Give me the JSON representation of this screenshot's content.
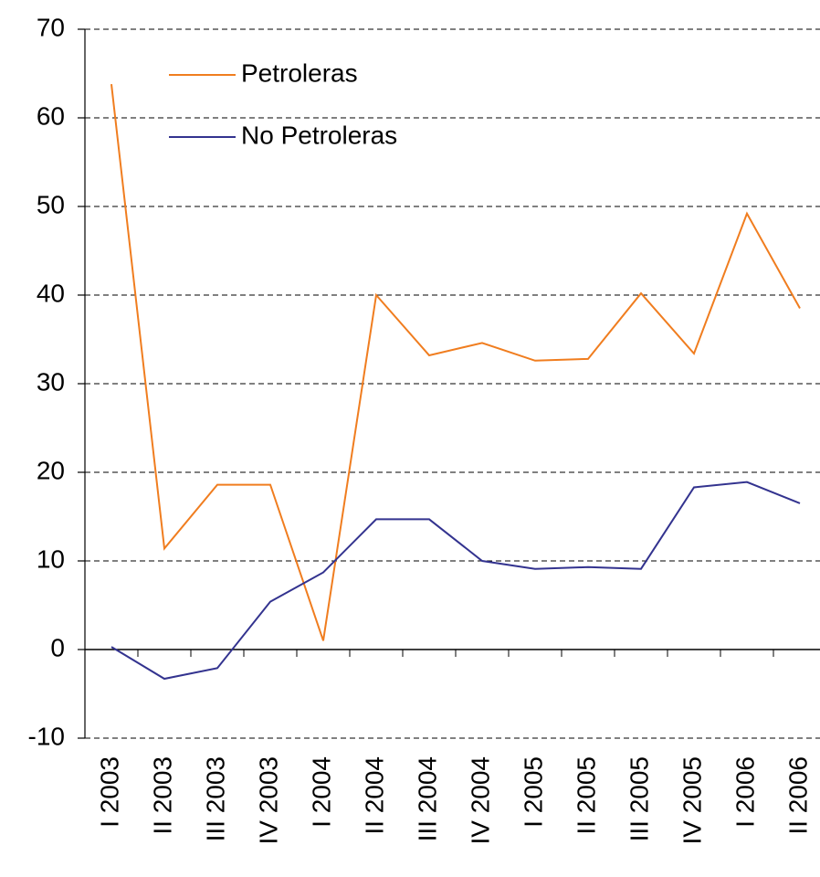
{
  "chart_data": {
    "type": "line",
    "categories": [
      "I 2003",
      "II 2003",
      "III 2003",
      "IV 2003",
      "I 2004",
      "II 2004",
      "III 2004",
      "IV 2004",
      "I 2005",
      "II 2005",
      "III 2005",
      "IV 2005",
      "I 2006",
      "II 2006"
    ],
    "series": [
      {
        "name": "Petroleras",
        "color": "#f07d1f",
        "values": [
          63.8,
          11.4,
          18.6,
          18.6,
          1.0,
          40.0,
          33.2,
          34.6,
          32.6,
          32.8,
          40.2,
          33.4,
          49.2,
          38.5
        ]
      },
      {
        "name": "No Petroleras",
        "color": "#33338f",
        "values": [
          0.3,
          -3.3,
          -2.1,
          5.4,
          8.7,
          14.7,
          14.7,
          10.0,
          9.1,
          9.3,
          9.1,
          18.3,
          18.9,
          16.5
        ]
      }
    ],
    "ylim": [
      -10,
      70
    ],
    "yticks": [
      -10,
      0,
      10,
      20,
      30,
      40,
      50,
      60,
      70
    ],
    "grid": true
  }
}
